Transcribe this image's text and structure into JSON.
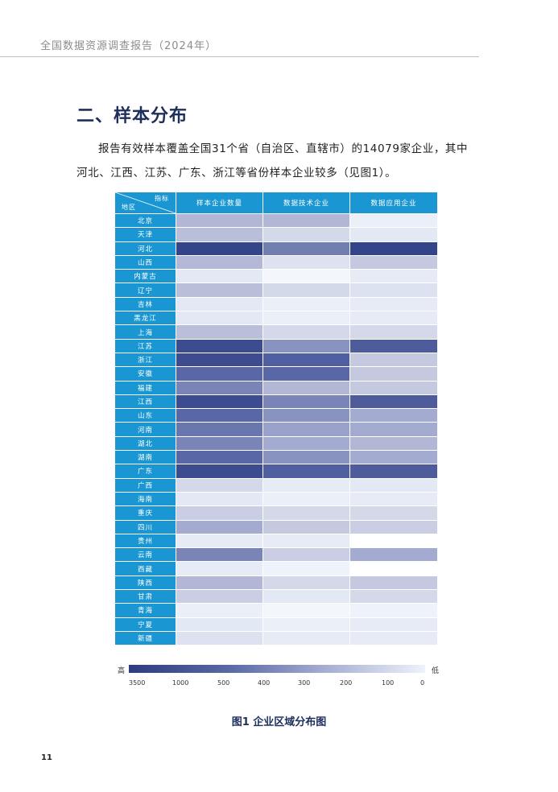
{
  "header": {
    "running_title": "全国数据资源调查报告（2024年）"
  },
  "section": {
    "title": "二、样本分布",
    "paragraph": "报告有效样本覆盖全国31个省（自治区、直辖市）的14079家企业，其中河北、江西、江苏、广东、浙江等省份样本企业较多（见图1）。"
  },
  "table": {
    "corner_top": "指标",
    "corner_bottom": "地区",
    "columns": [
      "样本企业数量",
      "数据技术企业",
      "数据应用企业"
    ],
    "rows": [
      {
        "region": "北京",
        "colors": [
          "#b2b7d5",
          "#b2b7d5",
          "#eaeff8"
        ]
      },
      {
        "region": "天津",
        "colors": [
          "#b9bed9",
          "#d4d9ea",
          "#e2e8f4"
        ]
      },
      {
        "region": "河北",
        "colors": [
          "#33448a",
          "#707fb0",
          "#33448a"
        ]
      },
      {
        "region": "山西",
        "colors": [
          "#b3b8d6",
          "#dce2f0",
          "#c4c9e0"
        ]
      },
      {
        "region": "内蒙古",
        "colors": [
          "#e2e8f4",
          "#f3f6fb",
          "#e6ebf6"
        ]
      },
      {
        "region": "辽宁",
        "colors": [
          "#b9bed9",
          "#d4d9ea",
          "#dce2f0"
        ]
      },
      {
        "region": "吉林",
        "colors": [
          "#e2e8f4",
          "#eaeff8",
          "#e6ebf6"
        ]
      },
      {
        "region": "黑龙江",
        "colors": [
          "#e2e8f4",
          "#eaeff8",
          "#e6ebf6"
        ]
      },
      {
        "region": "上海",
        "colors": [
          "#b9bed9",
          "#d4d9ea",
          "#d4d9ea"
        ]
      },
      {
        "region": "江苏",
        "colors": [
          "#3c4c8e",
          "#8993c0",
          "#4e5c9c"
        ]
      },
      {
        "region": "浙江",
        "colors": [
          "#3c4c8e",
          "#505fa0",
          "#c4c9e0"
        ]
      },
      {
        "region": "安徽",
        "colors": [
          "#5a67a6",
          "#5a67a6",
          "#c4c9e0"
        ]
      },
      {
        "region": "福建",
        "colors": [
          "#7a84b6",
          "#b2b7d5",
          "#c4c9e0"
        ]
      },
      {
        "region": "江西",
        "colors": [
          "#3c4c8e",
          "#7a84b6",
          "#4e5c9c"
        ]
      },
      {
        "region": "山东",
        "colors": [
          "#5a67a6",
          "#8993c0",
          "#a3abd0"
        ]
      },
      {
        "region": "河南",
        "colors": [
          "#6a76ae",
          "#9aa2cc",
          "#a3abd0"
        ]
      },
      {
        "region": "湖北",
        "colors": [
          "#7a84b6",
          "#a3abd0",
          "#b2b7d5"
        ]
      },
      {
        "region": "湖南",
        "colors": [
          "#5a67a6",
          "#8993c0",
          "#a3abd0"
        ]
      },
      {
        "region": "广东",
        "colors": [
          "#3c4c8e",
          "#505fa0",
          "#4e5c9c"
        ]
      },
      {
        "region": "广西",
        "colors": [
          "#d4d9ea",
          "#e6ebf6",
          "#e2e8f4"
        ]
      },
      {
        "region": "海南",
        "colors": [
          "#e2e8f4",
          "#eaeff8",
          "#e6ebf6"
        ]
      },
      {
        "region": "重庆",
        "colors": [
          "#c9cee4",
          "#d4d9ea",
          "#d4d9ea"
        ]
      },
      {
        "region": "四川",
        "colors": [
          "#a3abd0",
          "#c4c9e0",
          "#c9cee4"
        ]
      },
      {
        "region": "贵州",
        "colors": [
          "#e6ebf6",
          "#e6ebf6",
          "#ffffff"
        ]
      },
      {
        "region": "云南",
        "colors": [
          "#7a84b6",
          "#c9cee4",
          "#a3abd0"
        ]
      },
      {
        "region": "西藏",
        "colors": [
          "#e6ebf6",
          "#eef2fa",
          "#ffffff"
        ]
      },
      {
        "region": "陕西",
        "colors": [
          "#b2b7d5",
          "#d4d9ea",
          "#c4c9e0"
        ]
      },
      {
        "region": "甘肃",
        "colors": [
          "#c9cee4",
          "#e2e8f4",
          "#d4d9ea"
        ]
      },
      {
        "region": "青海",
        "colors": [
          "#eaeff8",
          "#f3f6fb",
          "#eef2fa"
        ]
      },
      {
        "region": "宁夏",
        "colors": [
          "#e2e8f4",
          "#eaeff8",
          "#e6ebf6"
        ]
      },
      {
        "region": "新疆",
        "colors": [
          "#dce2f0",
          "#e6ebf6",
          "#e6ebf6"
        ]
      }
    ]
  },
  "legend": {
    "high_label": "高",
    "low_label": "低",
    "ticks": [
      "3500",
      "1000",
      "500",
      "400",
      "300",
      "200",
      "100",
      "0"
    ]
  },
  "figure": {
    "caption": "图1  企业区域分布图"
  },
  "page": {
    "number": "11"
  }
}
